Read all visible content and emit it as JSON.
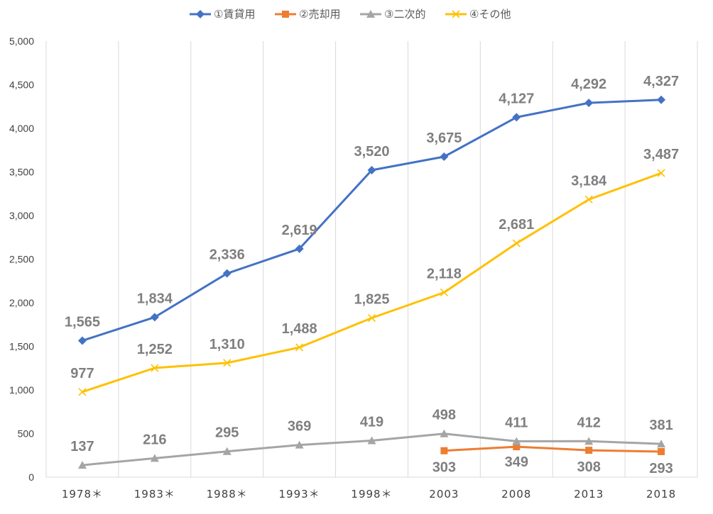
{
  "chart_data": {
    "type": "line",
    "title": "",
    "xlabel": "",
    "ylabel": "",
    "categories": [
      "1978＊",
      "1983＊",
      "1988＊",
      "1993＊",
      "1998＊",
      "2003",
      "2008",
      "2013",
      "2018"
    ],
    "ylim": [
      0,
      5000
    ],
    "yticks": [
      "0",
      "500",
      "1,000",
      "1,500",
      "2,000",
      "2,500",
      "3,000",
      "3,500",
      "4,000",
      "4,500",
      "5,000"
    ],
    "grid": "vertical",
    "legend": "top",
    "series": [
      {
        "name": "①賃貸用",
        "color": "#4472C4",
        "marker": "diamond",
        "values": [
          1565,
          1834,
          2336,
          2619,
          3520,
          3675,
          4127,
          4292,
          4327
        ],
        "labels": [
          "1,565",
          "1,834",
          "2,336",
          "2,619",
          "3,520",
          "3,675",
          "4,127",
          "4,292",
          "4,327"
        ]
      },
      {
        "name": "②売却用",
        "color": "#ED7D31",
        "marker": "square",
        "values": [
          null,
          null,
          null,
          null,
          null,
          303,
          349,
          308,
          293
        ],
        "labels": [
          null,
          null,
          null,
          null,
          null,
          "303",
          "349",
          "308",
          "293"
        ]
      },
      {
        "name": "③二次的",
        "color": "#A5A5A5",
        "marker": "triangle",
        "values": [
          137,
          216,
          295,
          369,
          419,
          498,
          411,
          412,
          381
        ],
        "labels": [
          "137",
          "216",
          "295",
          "369",
          "419",
          "498",
          "411",
          "412",
          "381"
        ]
      },
      {
        "name": "④その他",
        "color": "#FFC000",
        "marker": "x",
        "values": [
          977,
          1252,
          1310,
          1488,
          1825,
          2118,
          2681,
          3184,
          3487
        ],
        "labels": [
          "977",
          "1,252",
          "1,310",
          "1,488",
          "1,825",
          "2,118",
          "2,681",
          "3,184",
          "3,487"
        ]
      }
    ]
  }
}
